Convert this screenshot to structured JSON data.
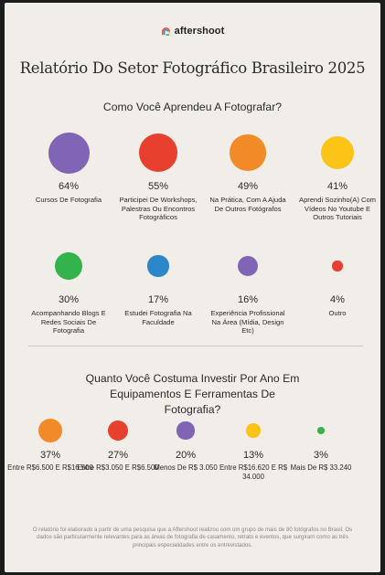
{
  "brand": {
    "name": "aftershoot",
    "logo_icon": "aftershoot-logo-icon"
  },
  "title": "Relatório Do Setor Fotográfico Brasileiro 2025",
  "colors": {
    "background": "#f1ede8",
    "purple": "#8065b6",
    "red": "#e8402f",
    "orange": "#f28a27",
    "yellow": "#fbc416",
    "green": "#34b24b",
    "blue": "#2d86c8"
  },
  "chart_data": [
    {
      "type": "bubble",
      "title": "Como Você Aprendeu A Fotografar?",
      "unit": "%",
      "items": [
        {
          "value": 64,
          "label": "64%",
          "category": "Cursos De Fotografia",
          "color": "#8065b6"
        },
        {
          "value": 55,
          "label": "55%",
          "category": "Participei De Workshops, Palestras Ou Encontros Fotográficos",
          "color": "#e8402f"
        },
        {
          "value": 49,
          "label": "49%",
          "category": "Na Prática, Com A Ajuda De Outros Fotógrafos",
          "color": "#f28a27"
        },
        {
          "value": 41,
          "label": "41%",
          "category": "Aprendi Sozinho(A) Com Vídeos No Youtube E Outros Tutoriais",
          "color": "#fbc416"
        },
        {
          "value": 30,
          "label": "30%",
          "category": "Acompanhando Blogs E Redes Sociais De Fotografia",
          "color": "#34b24b"
        },
        {
          "value": 17,
          "label": "17%",
          "category": "Estudei Fotografia Na Faculdade",
          "color": "#2d86c8"
        },
        {
          "value": 16,
          "label": "16%",
          "category": "Experiência Profissional Na Área (Mídia, Design Etc)",
          "color": "#8065b6"
        },
        {
          "value": 4,
          "label": "4%",
          "category": "Outro",
          "color": "#e8402f"
        }
      ]
    },
    {
      "type": "bubble",
      "title": "Quanto Você Costuma Investir Por Ano Em Equipamentos E Ferramentas De Fotografia?",
      "unit": "%",
      "items": [
        {
          "value": 37,
          "label": "37%",
          "category": "Entre R$6.500 E R$16.500",
          "color": "#f28a27"
        },
        {
          "value": 27,
          "label": "27%",
          "category": "Entre R$3.050 E R$6.500",
          "color": "#e8402f"
        },
        {
          "value": 20,
          "label": "20%",
          "category": "Menos De R$ 3.050",
          "color": "#8065b6"
        },
        {
          "value": 13,
          "label": "13%",
          "category": "Entre R$16.620 E R$ 34.000",
          "color": "#fbc416"
        },
        {
          "value": 3,
          "label": "3%",
          "category": "Mais De R$ 33.240",
          "color": "#34b24b"
        }
      ]
    }
  ],
  "footnote": "O relatório foi elaborado a partir de uma pesquisa que a Aftershoot realizou com um grupo de mais de 80 fotógrafos no Brasil. Os dados são particularmente relevantes para as áreas de fotografia de casamento, retrato e eventos, que surgiram como as três principais especialidades entre os entrevistados."
}
